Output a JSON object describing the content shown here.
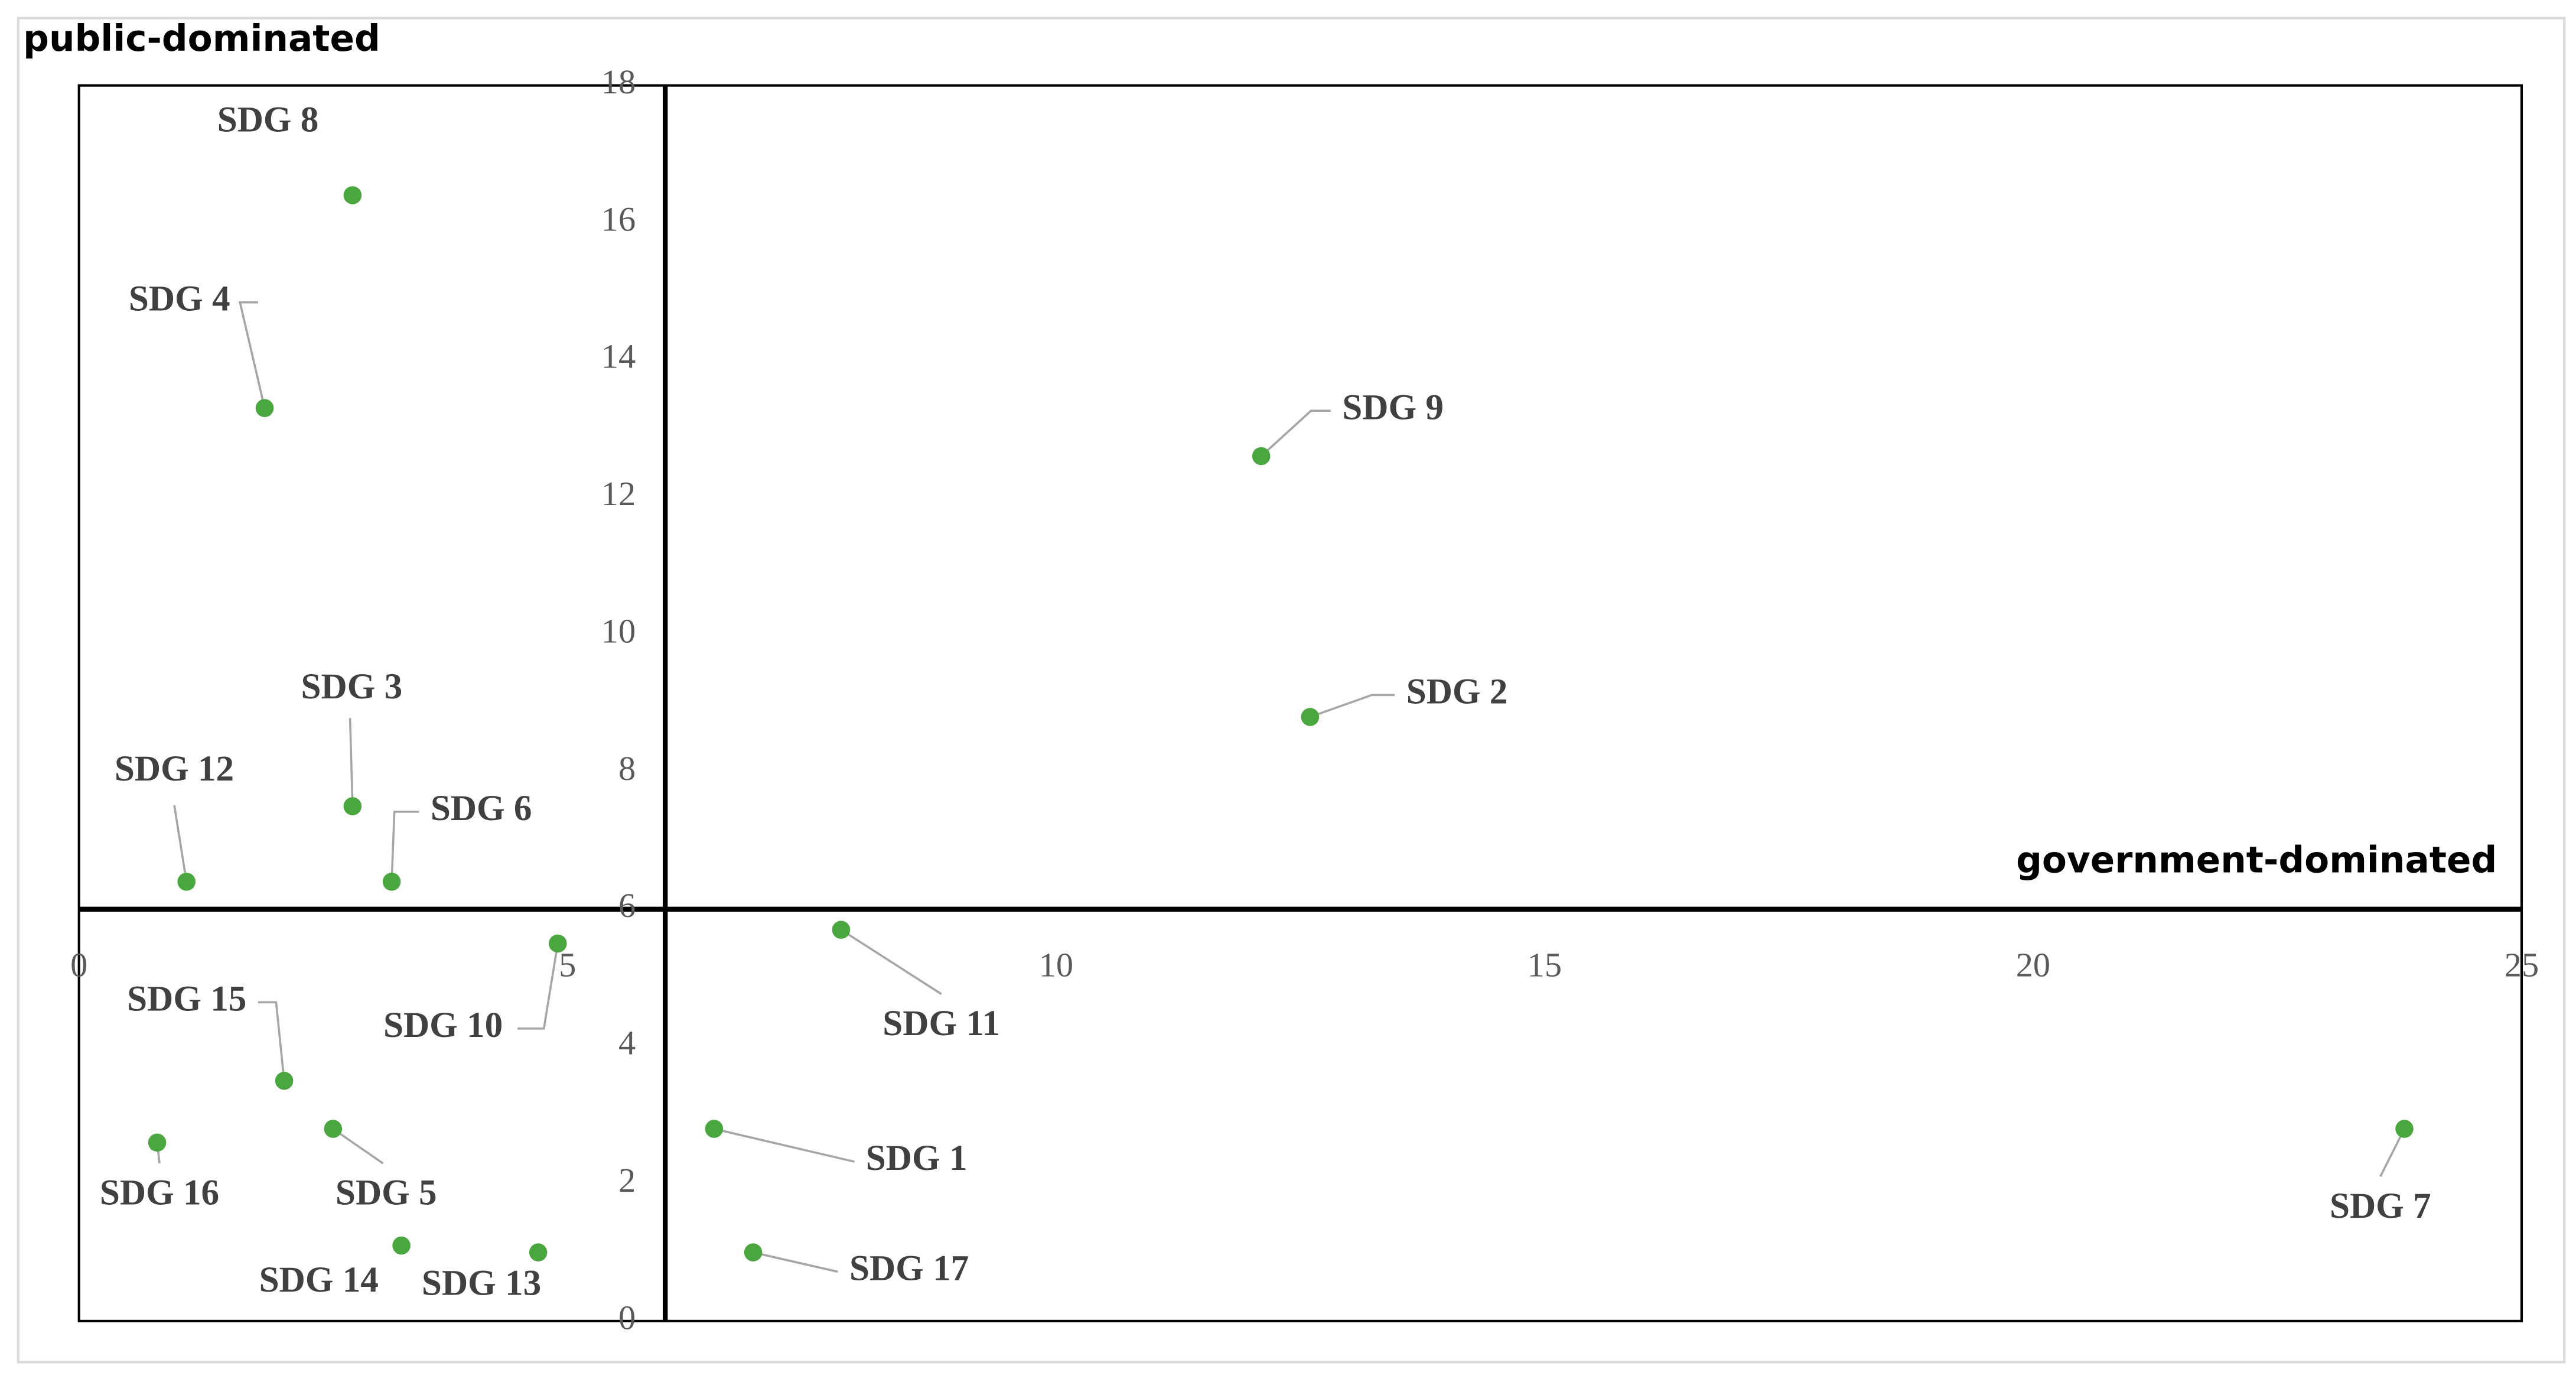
{
  "chart_data": {
    "type": "scatter",
    "annotations": [
      "public-dominated",
      "government-dominated"
    ],
    "point_labels": [
      "SDG 8",
      "SDG 4",
      "SDG 9",
      "SDG 2",
      "SDG 3",
      "SDG 12",
      "SDG 6",
      "SDG 10",
      "SDG 11",
      "SDG 15",
      "SDG 16",
      "SDG 5",
      "SDG 1",
      "SDG 14",
      "SDG 13",
      "SDG 17",
      "SDG 7"
    ],
    "x": [
      2.8,
      1.9,
      12.1,
      12.6,
      2.8,
      1.1,
      3.2,
      4.9,
      7.8,
      2.1,
      0.8,
      2.6,
      6.5,
      3.3,
      4.7,
      6.9,
      23.8
    ],
    "values": [
      16.4,
      13.3,
      12.6,
      8.8,
      7.5,
      6.4,
      6.4,
      5.5,
      5.7,
      3.5,
      2.6,
      2.8,
      2.8,
      1.1,
      1.0,
      1.0,
      2.8
    ],
    "color": "#4aa63f",
    "xlim": [
      0,
      25
    ],
    "ylim": [
      0,
      18
    ],
    "xticks": [
      0,
      5,
      10,
      15,
      20,
      25
    ],
    "yticks": [
      0,
      2,
      4,
      6,
      8,
      10,
      12,
      14,
      16,
      18
    ],
    "axis_cross": {
      "x": 6,
      "y": 6
    }
  }
}
